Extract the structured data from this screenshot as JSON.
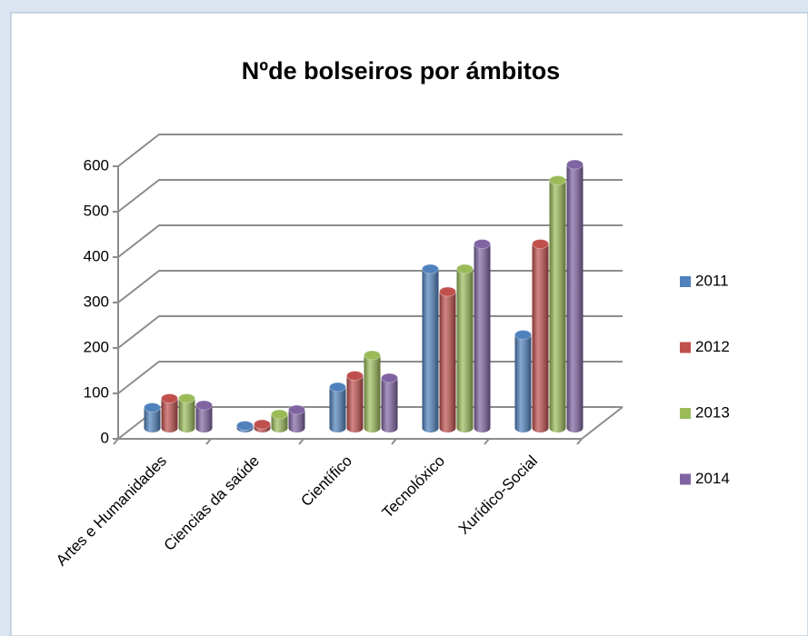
{
  "chart_data": {
    "type": "bar",
    "title": "Nºde bolseiros por ámbitos",
    "categories": [
      "Artes e Humanidades",
      "Ciencias da saúde",
      "Científico",
      "Tecnolóxico",
      "Xurídico-Social"
    ],
    "series": [
      {
        "name": "2011",
        "color": "#4f81bd",
        "values": [
          45,
          5,
          90,
          350,
          205
        ]
      },
      {
        "name": "2012",
        "color": "#c0504d",
        "values": [
          65,
          8,
          115,
          300,
          405
        ]
      },
      {
        "name": "2013",
        "color": "#9bbb59",
        "values": [
          65,
          30,
          160,
          350,
          545
        ]
      },
      {
        "name": "2014",
        "color": "#8064a2",
        "values": [
          50,
          40,
          110,
          405,
          580
        ]
      }
    ],
    "ylim": [
      0,
      600
    ],
    "yticks": [
      0,
      100,
      200,
      300,
      400,
      500,
      600
    ],
    "grid": true,
    "legend": "right"
  }
}
